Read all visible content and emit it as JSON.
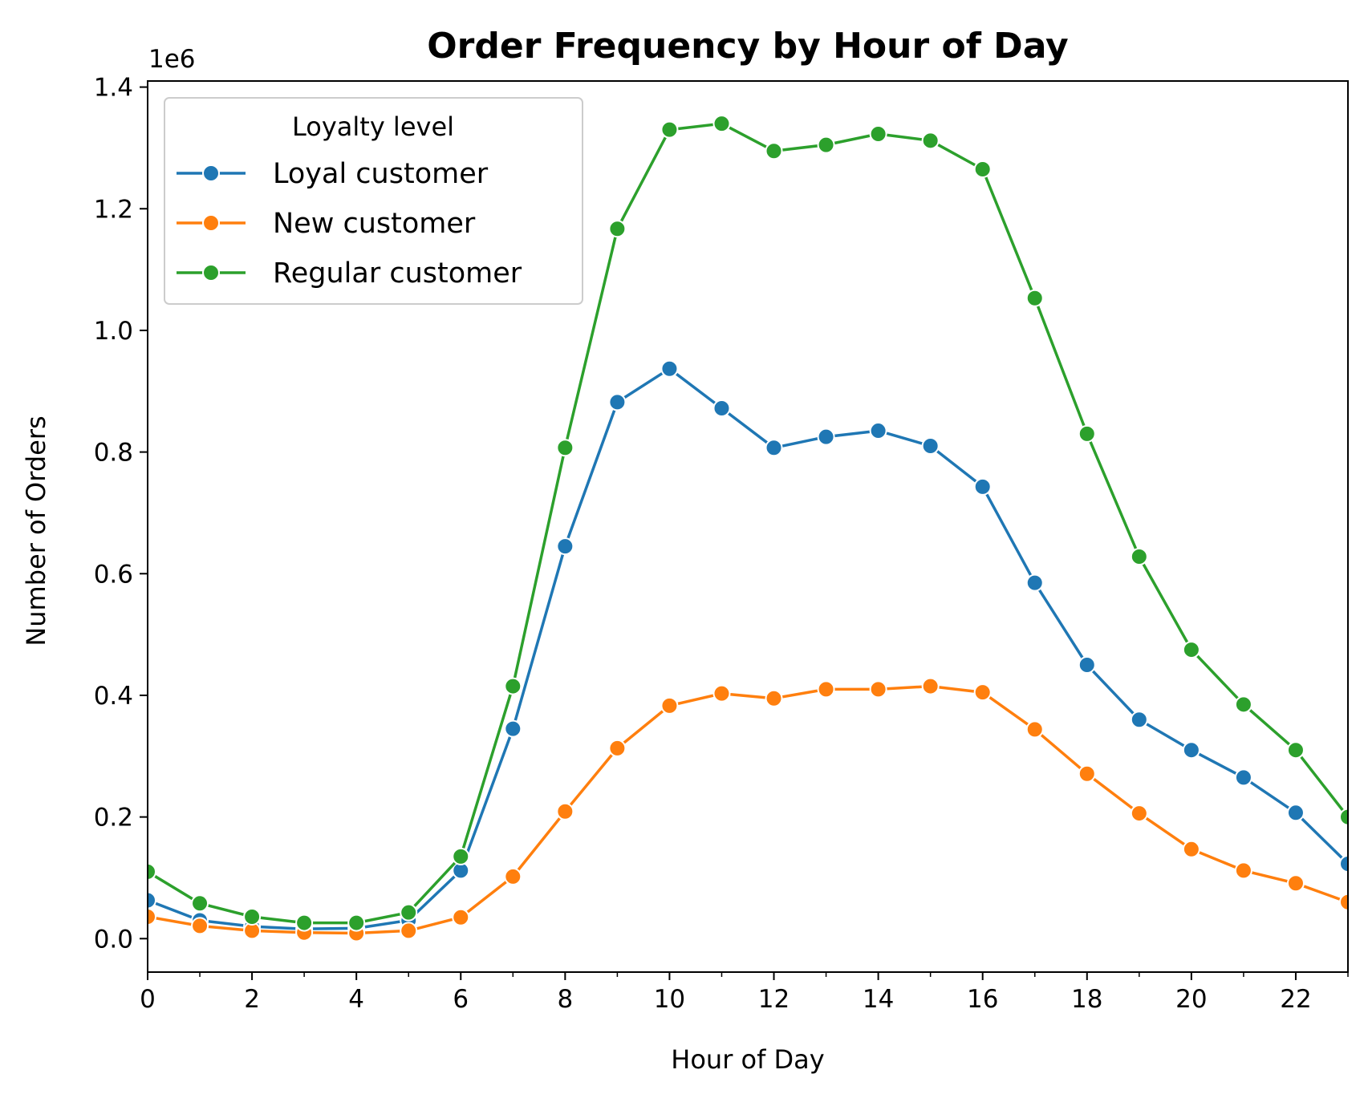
{
  "chart_data": {
    "type": "line",
    "title": "Order Frequency by Hour of Day",
    "xlabel": "Hour of Day",
    "ylabel": "Number of Orders",
    "y_offset_text": "1e6",
    "xlim": [
      0,
      23
    ],
    "ylim": [
      -0.055,
      1.41
    ],
    "x_ticks": [
      0,
      2,
      4,
      6,
      8,
      10,
      12,
      14,
      16,
      18,
      20,
      22
    ],
    "x_tick_labels": [
      "0",
      "2",
      "4",
      "6",
      "8",
      "10",
      "12",
      "14",
      "16",
      "18",
      "20",
      "22"
    ],
    "x_minor_ticks": [
      1,
      3,
      5,
      7,
      9,
      11,
      13,
      15,
      17,
      19,
      21,
      23
    ],
    "y_ticks": [
      0.0,
      0.2,
      0.4,
      0.6,
      0.8,
      1.0,
      1.2,
      1.4
    ],
    "y_tick_labels": [
      "0.0",
      "0.2",
      "0.4",
      "0.6",
      "0.8",
      "1.0",
      "1.2",
      "1.4"
    ],
    "grid": false,
    "legend": {
      "title": "Loyalty level",
      "position": "top-left"
    },
    "x": [
      0,
      1,
      2,
      3,
      4,
      5,
      6,
      7,
      8,
      9,
      10,
      11,
      12,
      13,
      14,
      15,
      16,
      17,
      18,
      19,
      20,
      21,
      22,
      23
    ],
    "series": [
      {
        "name": "Loyal customer",
        "color": "#1f77b4",
        "values": [
          0.063,
          0.03,
          0.02,
          0.016,
          0.017,
          0.03,
          0.112,
          0.345,
          0.645,
          0.882,
          0.937,
          0.872,
          0.807,
          0.825,
          0.835,
          0.81,
          0.743,
          0.585,
          0.45,
          0.36,
          0.31,
          0.265,
          0.207,
          0.123
        ]
      },
      {
        "name": "New customer",
        "color": "#ff7f0e",
        "values": [
          0.036,
          0.021,
          0.013,
          0.01,
          0.009,
          0.013,
          0.035,
          0.102,
          0.209,
          0.313,
          0.383,
          0.403,
          0.395,
          0.41,
          0.41,
          0.415,
          0.405,
          0.344,
          0.271,
          0.206,
          0.147,
          0.112,
          0.091,
          0.06
        ]
      },
      {
        "name": "Regular customer",
        "color": "#2ca02c",
        "values": [
          0.11,
          0.058,
          0.036,
          0.026,
          0.026,
          0.043,
          0.135,
          0.415,
          0.807,
          1.167,
          1.33,
          1.34,
          1.295,
          1.305,
          1.323,
          1.312,
          1.265,
          1.053,
          0.83,
          0.628,
          0.475,
          0.385,
          0.31,
          0.2
        ]
      }
    ]
  }
}
